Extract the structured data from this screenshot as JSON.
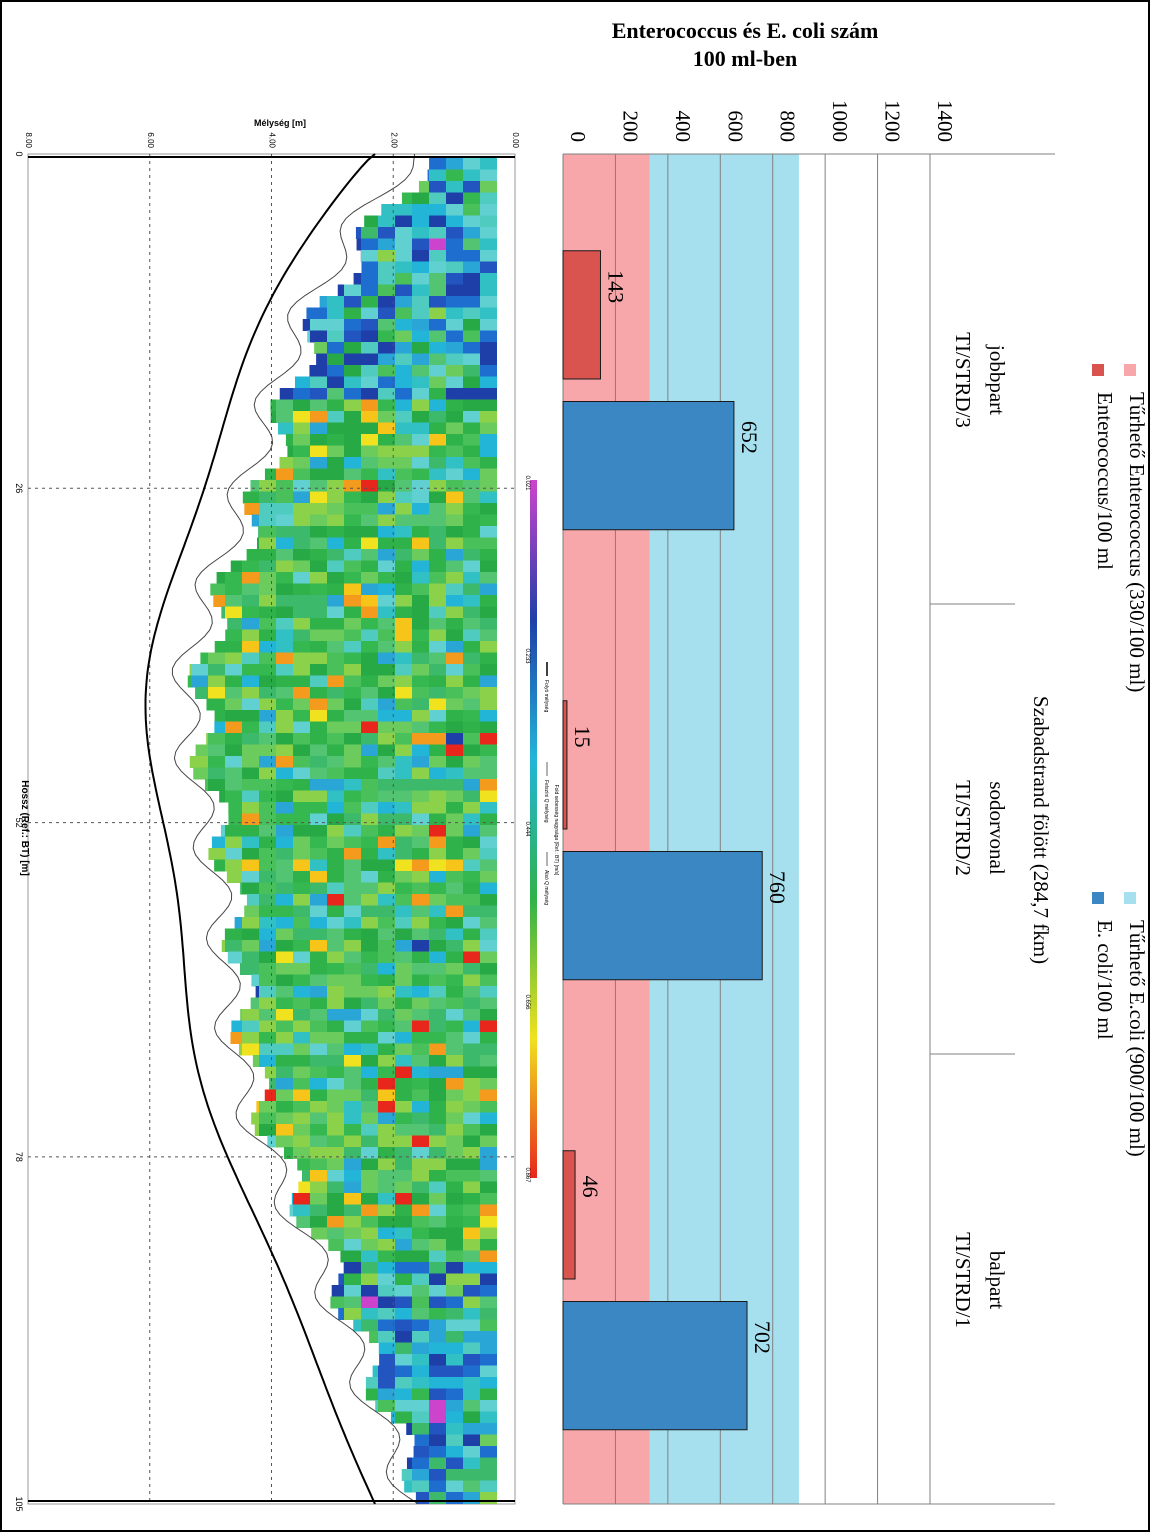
{
  "chart_data": [
    {
      "type": "bar",
      "orientation": "rotated 90deg clockwise (values increase downward in the page)",
      "title": "Enterococcus és E. coli szám",
      "subtitle": "100 ml-ben",
      "group_title": "Szabadstrand fölött (284,7 fkm)",
      "categories": [
        {
          "label": "jobbpart",
          "code": "TI/STRD/3"
        },
        {
          "label": "sodorvonal",
          "code": "TI/STRD/2"
        },
        {
          "label": "balpart",
          "code": "TI/STRD/1"
        }
      ],
      "series": [
        {
          "name": "Enterococcus/100 ml",
          "color": "#d9534f",
          "values": [
            143,
            15,
            46
          ]
        },
        {
          "name": "E. coli/100 ml",
          "color": "#3a87c4",
          "values": [
            652,
            760,
            702
          ]
        }
      ],
      "bands": [
        {
          "name": "Tűrhető Enterococcus (330/100 ml)",
          "from": 0,
          "to": 330,
          "color": "#f7a6a9"
        },
        {
          "name": "Tűrhető E.coli (900/100 ml)",
          "from": 330,
          "to": 900,
          "color": "#a6e0ee"
        }
      ],
      "value_axis": {
        "min": 0,
        "max": 1400,
        "ticks": [
          0,
          200,
          400,
          600,
          800,
          1000,
          1200,
          1400
        ]
      },
      "grid": true,
      "legend_position": "right (rotated)"
    },
    {
      "type": "heatmap",
      "title": "",
      "orientation": "rotated 90deg clockwise",
      "xlabel": "Hossz (Ref.: BT) [m]",
      "ylabel": "Mélység [m]",
      "x_ticks": [
        "0",
        "26",
        "52",
        "78",
        "105"
      ],
      "y_ticks": [
        "0.00",
        "2.00",
        "4.00",
        "6.00",
        "8.00"
      ],
      "colorbar": {
        "ticks": [
          "0.021",
          "0.233",
          "0.444",
          "0.656",
          "0.867"
        ],
        "stops": [
          "#cc44cc",
          "#1f3fa8",
          "#22b5d8",
          "#2fb24a",
          "#f0e21e",
          "#e8261b"
        ]
      },
      "legend_items": [
        "Folyó mélység",
        "Felszíni Q mélység",
        "Alsó Q mélység"
      ],
      "legend_title": "Fold sebesség nagysága (Ref.: BT) [m/s]"
    }
  ]
}
